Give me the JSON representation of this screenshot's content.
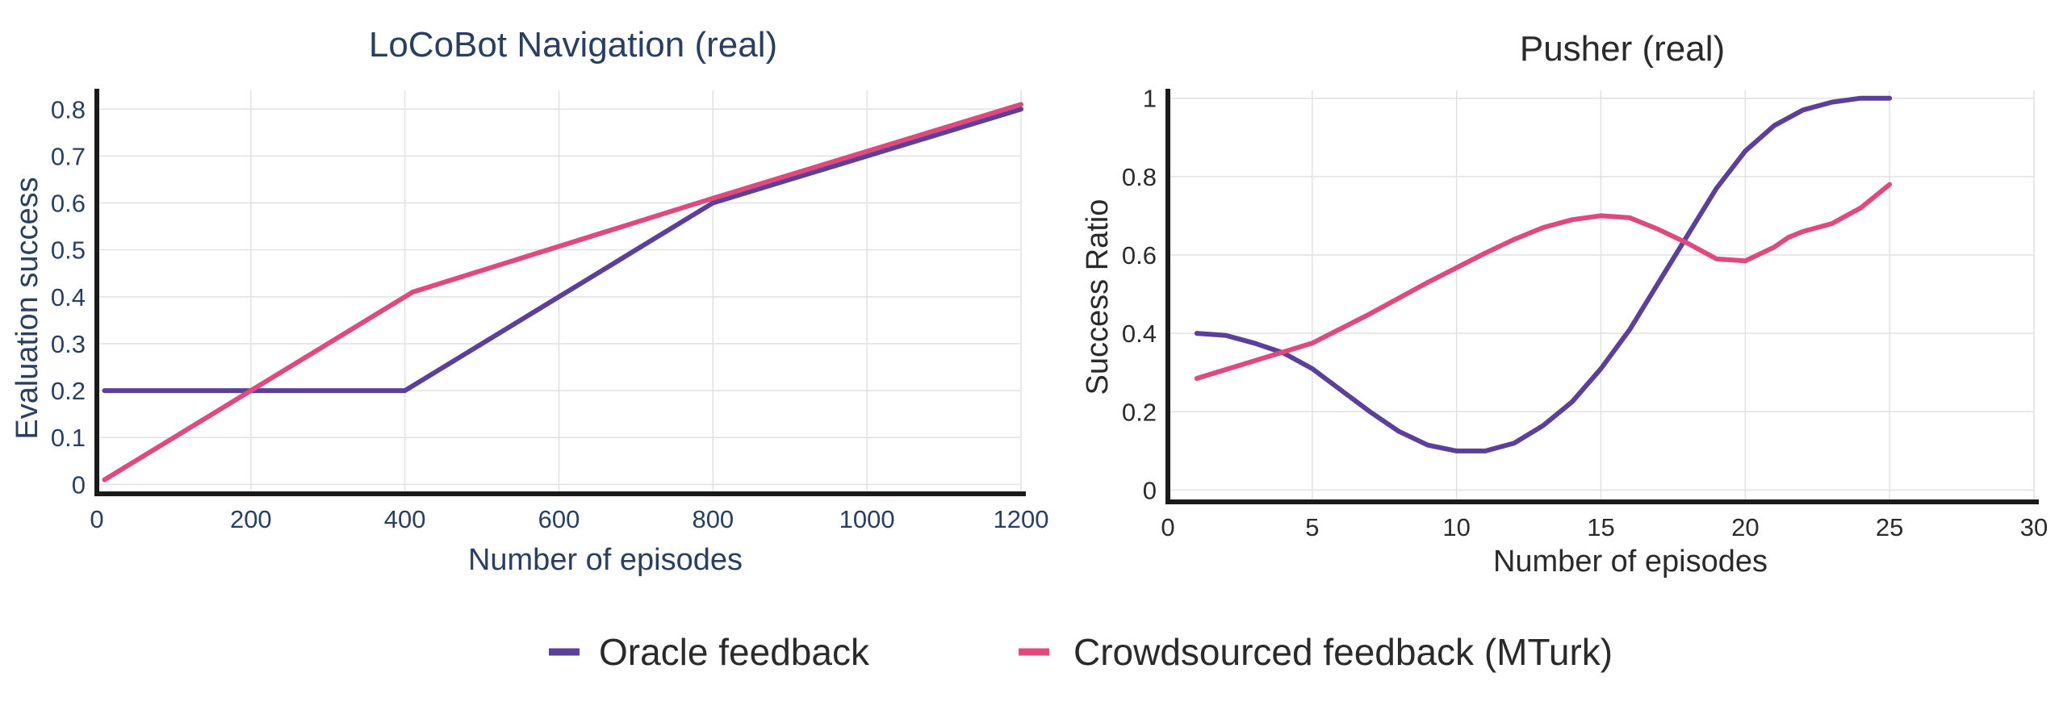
{
  "colors": {
    "oracle": "#5b3f99",
    "crowd": "#de4a7e",
    "title_left": "#2a3f5f",
    "text_dark": "#2a2a2a"
  },
  "legend": {
    "items": [
      {
        "label": "Oracle feedback",
        "color": "#5b3f99"
      },
      {
        "label": "Crowdsourced feedback (MTurk)",
        "color": "#de4a7e"
      }
    ]
  },
  "chart_data": [
    {
      "type": "line",
      "title": "LoCoBot Navigation (real)",
      "xlabel": "Number of episodes",
      "ylabel": "Evaluation success",
      "xlim": [
        0,
        1200
      ],
      "ylim": [
        -0.02,
        0.84
      ],
      "grid": true,
      "x_ticks": [
        "0",
        "200",
        "400",
        "600",
        "800",
        "1000",
        "1200"
      ],
      "y_ticks": [
        "0",
        "0.1",
        "0.2",
        "0.3",
        "0.4",
        "0.5",
        "0.6",
        "0.7",
        "0.8"
      ],
      "series": [
        {
          "name": "Oracle feedback",
          "x": [
            10,
            400,
            800,
            1200
          ],
          "y": [
            0.2,
            0.2,
            0.6,
            0.8
          ]
        },
        {
          "name": "Crowdsourced feedback (MTurk)",
          "x": [
            10,
            200,
            410,
            800,
            1200
          ],
          "y": [
            0.01,
            0.2,
            0.41,
            0.61,
            0.81
          ]
        }
      ]
    },
    {
      "type": "line",
      "title": "Pusher (real)",
      "xlabel": "Number of episodes",
      "ylabel": "Success Ratio",
      "xlim": [
        0,
        30
      ],
      "ylim": [
        -0.03,
        1.02
      ],
      "grid": true,
      "x_ticks": [
        "0",
        "5",
        "10",
        "15",
        "20",
        "25",
        "30"
      ],
      "y_ticks": [
        "0",
        "0.2",
        "0.4",
        "0.6",
        "0.8",
        "1"
      ],
      "series": [
        {
          "name": "Oracle feedback",
          "x": [
            1,
            2,
            3,
            4,
            5,
            6,
            7,
            8,
            9,
            10,
            11,
            12,
            13,
            14,
            15,
            16,
            17,
            18,
            19,
            20,
            21,
            22,
            23,
            24,
            25
          ],
          "y": [
            0.4,
            0.395,
            0.375,
            0.35,
            0.31,
            0.255,
            0.2,
            0.15,
            0.115,
            0.1,
            0.1,
            0.12,
            0.165,
            0.225,
            0.31,
            0.41,
            0.53,
            0.65,
            0.77,
            0.865,
            0.93,
            0.97,
            0.99,
            1.0,
            1.0
          ]
        },
        {
          "name": "Crowdsourced feedback (MTurk)",
          "x": [
            1,
            3,
            5,
            7,
            9,
            11,
            12,
            13,
            14,
            15,
            16,
            17,
            18,
            19,
            20,
            21,
            21.5,
            22,
            23,
            24,
            25
          ],
          "y": [
            0.285,
            0.33,
            0.375,
            0.45,
            0.53,
            0.605,
            0.64,
            0.67,
            0.69,
            0.7,
            0.695,
            0.665,
            0.63,
            0.59,
            0.585,
            0.62,
            0.645,
            0.66,
            0.68,
            0.72,
            0.78
          ]
        }
      ]
    }
  ]
}
